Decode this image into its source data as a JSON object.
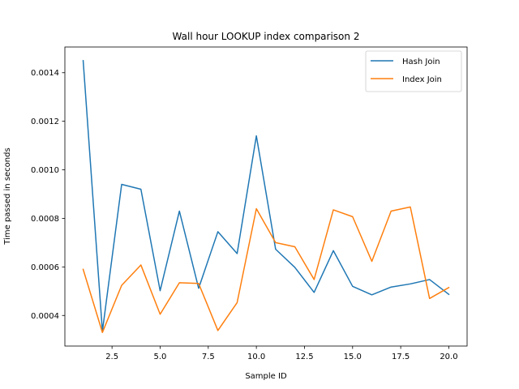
{
  "chart_data": {
    "type": "line",
    "title": "Wall hour LOOKUP index comparison 2",
    "xlabel": "Sample ID",
    "ylabel": "Time passed in seconds",
    "xlim": [
      0.05,
      20.95
    ],
    "ylim": [
      0.000274,
      0.001506
    ],
    "xticks": [
      2.5,
      5.0,
      7.5,
      10.0,
      12.5,
      15.0,
      17.5,
      20.0
    ],
    "xtick_labels": [
      "2.5",
      "5.0",
      "7.5",
      "10.0",
      "12.5",
      "15.0",
      "17.5",
      "20.0"
    ],
    "yticks": [
      0.0004,
      0.0006,
      0.0008,
      0.001,
      0.0012,
      0.0014
    ],
    "ytick_labels": [
      "0.0004",
      "0.0006",
      "0.0008",
      "0.0010",
      "0.0012",
      "0.0014"
    ],
    "grid": false,
    "legend_position": "top-right",
    "x": [
      1,
      2,
      3,
      4,
      5,
      6,
      7,
      8,
      9,
      10,
      11,
      12,
      13,
      14,
      15,
      16,
      17,
      18,
      19,
      20
    ],
    "series": [
      {
        "name": "Hash Join",
        "color": "#1f77b4",
        "values": [
          0.00145,
          0.000335,
          0.00094,
          0.00092,
          0.000502,
          0.00083,
          0.000512,
          0.000745,
          0.000655,
          0.00114,
          0.000673,
          0.000598,
          0.000495,
          0.000667,
          0.00052,
          0.000485,
          0.000517,
          0.00053,
          0.000548,
          0.000487
        ]
      },
      {
        "name": "Index Join",
        "color": "#ff7f0e",
        "values": [
          0.00059,
          0.00033,
          0.000524,
          0.000608,
          0.000405,
          0.000535,
          0.000532,
          0.000338,
          0.000453,
          0.00084,
          0.0007,
          0.000683,
          0.000548,
          0.000835,
          0.000807,
          0.000623,
          0.00083,
          0.000847,
          0.00047,
          0.000515
        ]
      }
    ]
  }
}
